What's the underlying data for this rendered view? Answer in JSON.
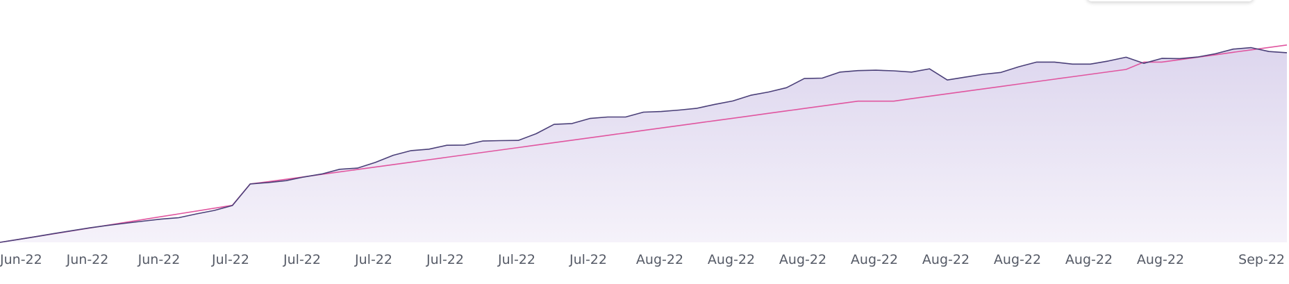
{
  "chart_data": {
    "type": "area",
    "title": "",
    "xlabel": "",
    "ylabel": "",
    "grid": false,
    "legend": "top-right",
    "x_ticks": [
      "Jun-22",
      "Jun-22",
      "Jun-22",
      "Jul-22",
      "Jul-22",
      "Jul-22",
      "Jul-22",
      "Jul-22",
      "Jul-22",
      "Aug-22",
      "Aug-22",
      "Aug-22",
      "Aug-22",
      "Aug-22",
      "Aug-22",
      "Aug-22",
      "Aug-22",
      "Sep-22"
    ],
    "ylim": [
      0,
      100
    ],
    "colors": {
      "area_line": "#4a3f78",
      "area_fill": "#e2dcf0",
      "trend_line": "#e0559f",
      "axis_text": "#555a66"
    },
    "series": [
      {
        "kind": "area",
        "x": [
          0,
          1,
          2,
          3,
          4,
          5,
          6,
          7,
          8,
          9,
          10,
          11,
          12,
          13,
          14,
          15,
          16,
          17,
          18,
          19,
          20,
          21,
          22,
          23,
          24,
          25,
          26,
          27,
          28,
          29,
          30,
          31,
          32,
          33,
          34,
          35,
          36,
          37,
          38,
          39,
          40,
          41,
          42,
          43,
          44,
          45,
          46,
          47,
          48,
          49,
          50,
          51,
          52,
          53,
          54,
          55,
          56,
          57,
          58,
          59,
          60,
          61,
          62,
          63,
          64,
          65,
          66,
          67,
          68,
          69,
          70,
          71,
          72
        ],
        "values": [
          0,
          1.4,
          2.8,
          4.3,
          5.7,
          7.1,
          8.3,
          9.4,
          10.4,
          11.4,
          12.1,
          14,
          15.7,
          18.1,
          28.7,
          29.4,
          30.3,
          32.1,
          33.6,
          35.9,
          36.5,
          39.3,
          42.8,
          45.1,
          45.8,
          47.7,
          47.8,
          49.8,
          50,
          50.1,
          53.4,
          58,
          58.4,
          60.9,
          61.6,
          61.6,
          64,
          64.3,
          65,
          65.9,
          67.8,
          69.5,
          72.3,
          73.9,
          76,
          80.5,
          80.7,
          83.7,
          84.4,
          84.6,
          84.3,
          83.7,
          85.3,
          79.8,
          81.2,
          82.6,
          83.5,
          86.3,
          88.6,
          88.6,
          87.6,
          87.6,
          89.1,
          91,
          88,
          90.4,
          90.3,
          91.1,
          92.7,
          95,
          95.7,
          93.8,
          93.2
        ]
      },
      {
        "kind": "line",
        "x": [
          0,
          1,
          2,
          3,
          4,
          5,
          6,
          7,
          8,
          9,
          10,
          11,
          12,
          13,
          14,
          15,
          16,
          17,
          18,
          19,
          20,
          21,
          22,
          23,
          24,
          25,
          26,
          27,
          28,
          29,
          30,
          31,
          32,
          33,
          34,
          35,
          36,
          37,
          38,
          39,
          40,
          41,
          42,
          43,
          44,
          45,
          46,
          47,
          48,
          49,
          50,
          51,
          52,
          53,
          54,
          55,
          56,
          57,
          58,
          59,
          60,
          61,
          62,
          63,
          64,
          65,
          66,
          67,
          68,
          69,
          70,
          71,
          72
        ],
        "values": [
          0,
          1.4,
          2.8,
          4.2,
          5.6,
          7,
          8.4,
          9.8,
          11.2,
          12.6,
          14,
          15.4,
          16.8,
          18.2,
          28.7,
          29.8,
          31,
          32.2,
          33.4,
          34.6,
          35.8,
          37,
          38.2,
          39.4,
          40.6,
          41.8,
          43,
          44.2,
          45.4,
          46.6,
          47.8,
          49,
          50.2,
          51.4,
          52.6,
          53.8,
          55,
          56.2,
          57.4,
          58.6,
          59.8,
          61,
          62.2,
          63.4,
          64.6,
          65.8,
          67,
          68.2,
          69.4,
          69.4,
          69.4,
          70.6,
          71.8,
          73,
          74.2,
          75.4,
          76.6,
          77.8,
          79,
          80.2,
          81.4,
          82.6,
          83.8,
          85,
          88.6,
          88.6,
          89.8,
          91,
          92.2,
          93.4,
          94.6,
          95.8,
          97
        ]
      }
    ]
  }
}
